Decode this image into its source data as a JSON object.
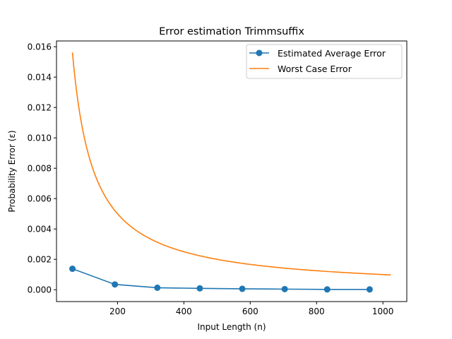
{
  "chart_data": {
    "type": "line",
    "title": "Error estimation Trimmsuffix",
    "xlabel": "Input Length (n)",
    "ylabel": "Probability Error (ε)",
    "xlim": [
      16,
      1072
    ],
    "ylim": [
      -0.00078,
      0.01638
    ],
    "xticks": [
      200,
      400,
      600,
      800,
      1000
    ],
    "yticks": [
      0.0,
      0.002,
      0.004,
      0.006,
      0.008,
      0.01,
      0.012,
      0.014,
      0.016
    ],
    "ytick_labels": [
      "0.000",
      "0.002",
      "0.004",
      "0.006",
      "0.008",
      "0.010",
      "0.012",
      "0.014",
      "0.016"
    ],
    "grid": false,
    "legend_position": "top-right",
    "series": [
      {
        "name": "Estimated Average Error",
        "color": "#1f77b4",
        "marker": "circle",
        "x": [
          64,
          192,
          320,
          448,
          576,
          704,
          832,
          960
        ],
        "y": [
          0.00138,
          0.00035,
          0.00013,
          9e-05,
          6e-05,
          4e-05,
          2e-05,
          2e-05
        ]
      },
      {
        "name": "Worst Case Error",
        "color": "#ff7f0e",
        "marker": "none",
        "formula_points": {
          "x_start": 64,
          "x_end": 1024,
          "k": 1.0
        }
      }
    ]
  }
}
